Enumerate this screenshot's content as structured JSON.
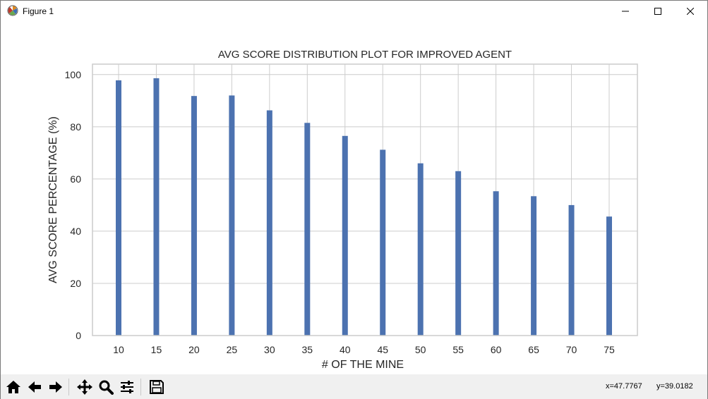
{
  "window": {
    "title": "Figure 1",
    "icons": [
      "matplotlib-icon",
      "minimize-icon",
      "maximize-icon",
      "close-icon"
    ]
  },
  "toolbar": {
    "icons": [
      "home-icon",
      "back-icon",
      "forward-icon",
      "pan-icon",
      "zoom-icon",
      "configure-subplots-icon",
      "save-icon"
    ],
    "coord_x": "x=47.7767",
    "coord_y": "y=39.0182"
  },
  "chart_data": {
    "type": "bar",
    "title": "AVG SCORE DISTRIBUTION PLOT FOR IMPROVED AGENT",
    "xlabel": "# OF THE MINE",
    "ylabel": "AVG SCORE PERCENTAGE (%)",
    "categories": [
      "10",
      "15",
      "20",
      "25",
      "30",
      "35",
      "40",
      "45",
      "50",
      "55",
      "60",
      "65",
      "70",
      "75"
    ],
    "values": [
      97.8,
      98.6,
      91.8,
      92.0,
      86.3,
      81.5,
      76.5,
      71.2,
      66.0,
      63.0,
      55.3,
      53.4,
      50.0,
      45.6
    ],
    "yticks": [
      "0",
      "20",
      "40",
      "60",
      "80",
      "100"
    ],
    "ylim": [
      0,
      104
    ],
    "grid": true,
    "bar_color": "#4c72b0",
    "grid_color": "#cccccc"
  }
}
